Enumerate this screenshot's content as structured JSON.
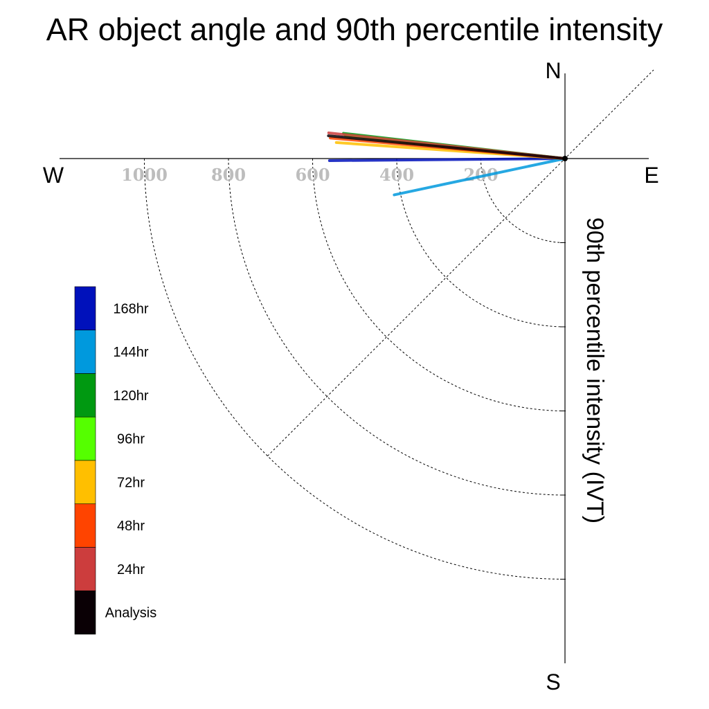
{
  "chart_data": {
    "type": "polar-vector",
    "title": "AR object angle and 90th percentile intensity",
    "ylabel": "90th percentile intensity (IVT)",
    "compass": {
      "north": "N",
      "south": "S",
      "east": "E",
      "west": "W"
    },
    "radial_ticks": [
      "1000",
      "800",
      "600",
      "400",
      "200"
    ],
    "radial_tick_values": [
      1000,
      800,
      600,
      400,
      200
    ],
    "radial_range": [
      0,
      1200
    ],
    "grid": true,
    "legend_position": "left",
    "series": [
      {
        "name": "168hr",
        "color": "#0011bb",
        "magnitude": 560,
        "angle_deg": 180.5
      },
      {
        "name": "144hr",
        "color": "#0099dd",
        "magnitude": 415,
        "angle_deg": 192.0
      },
      {
        "name": "120hr",
        "color": "#009911",
        "magnitude": 530,
        "angle_deg": 173.5
      },
      {
        "name": "96hr",
        "color": "#55ff00",
        "magnitude": 525,
        "angle_deg": 174.0
      },
      {
        "name": "72hr",
        "color": "#ffbf00",
        "magnitude": 545,
        "angle_deg": 176.0
      },
      {
        "name": "48hr",
        "color": "#ff4400",
        "magnitude": 560,
        "angle_deg": 175.0
      },
      {
        "name": "24hr",
        "color": "#cc3d3d",
        "magnitude": 565,
        "angle_deg": 173.8
      },
      {
        "name": "Analysis",
        "color": "#0a0005",
        "magnitude": 565,
        "angle_deg": 174.5
      }
    ]
  }
}
